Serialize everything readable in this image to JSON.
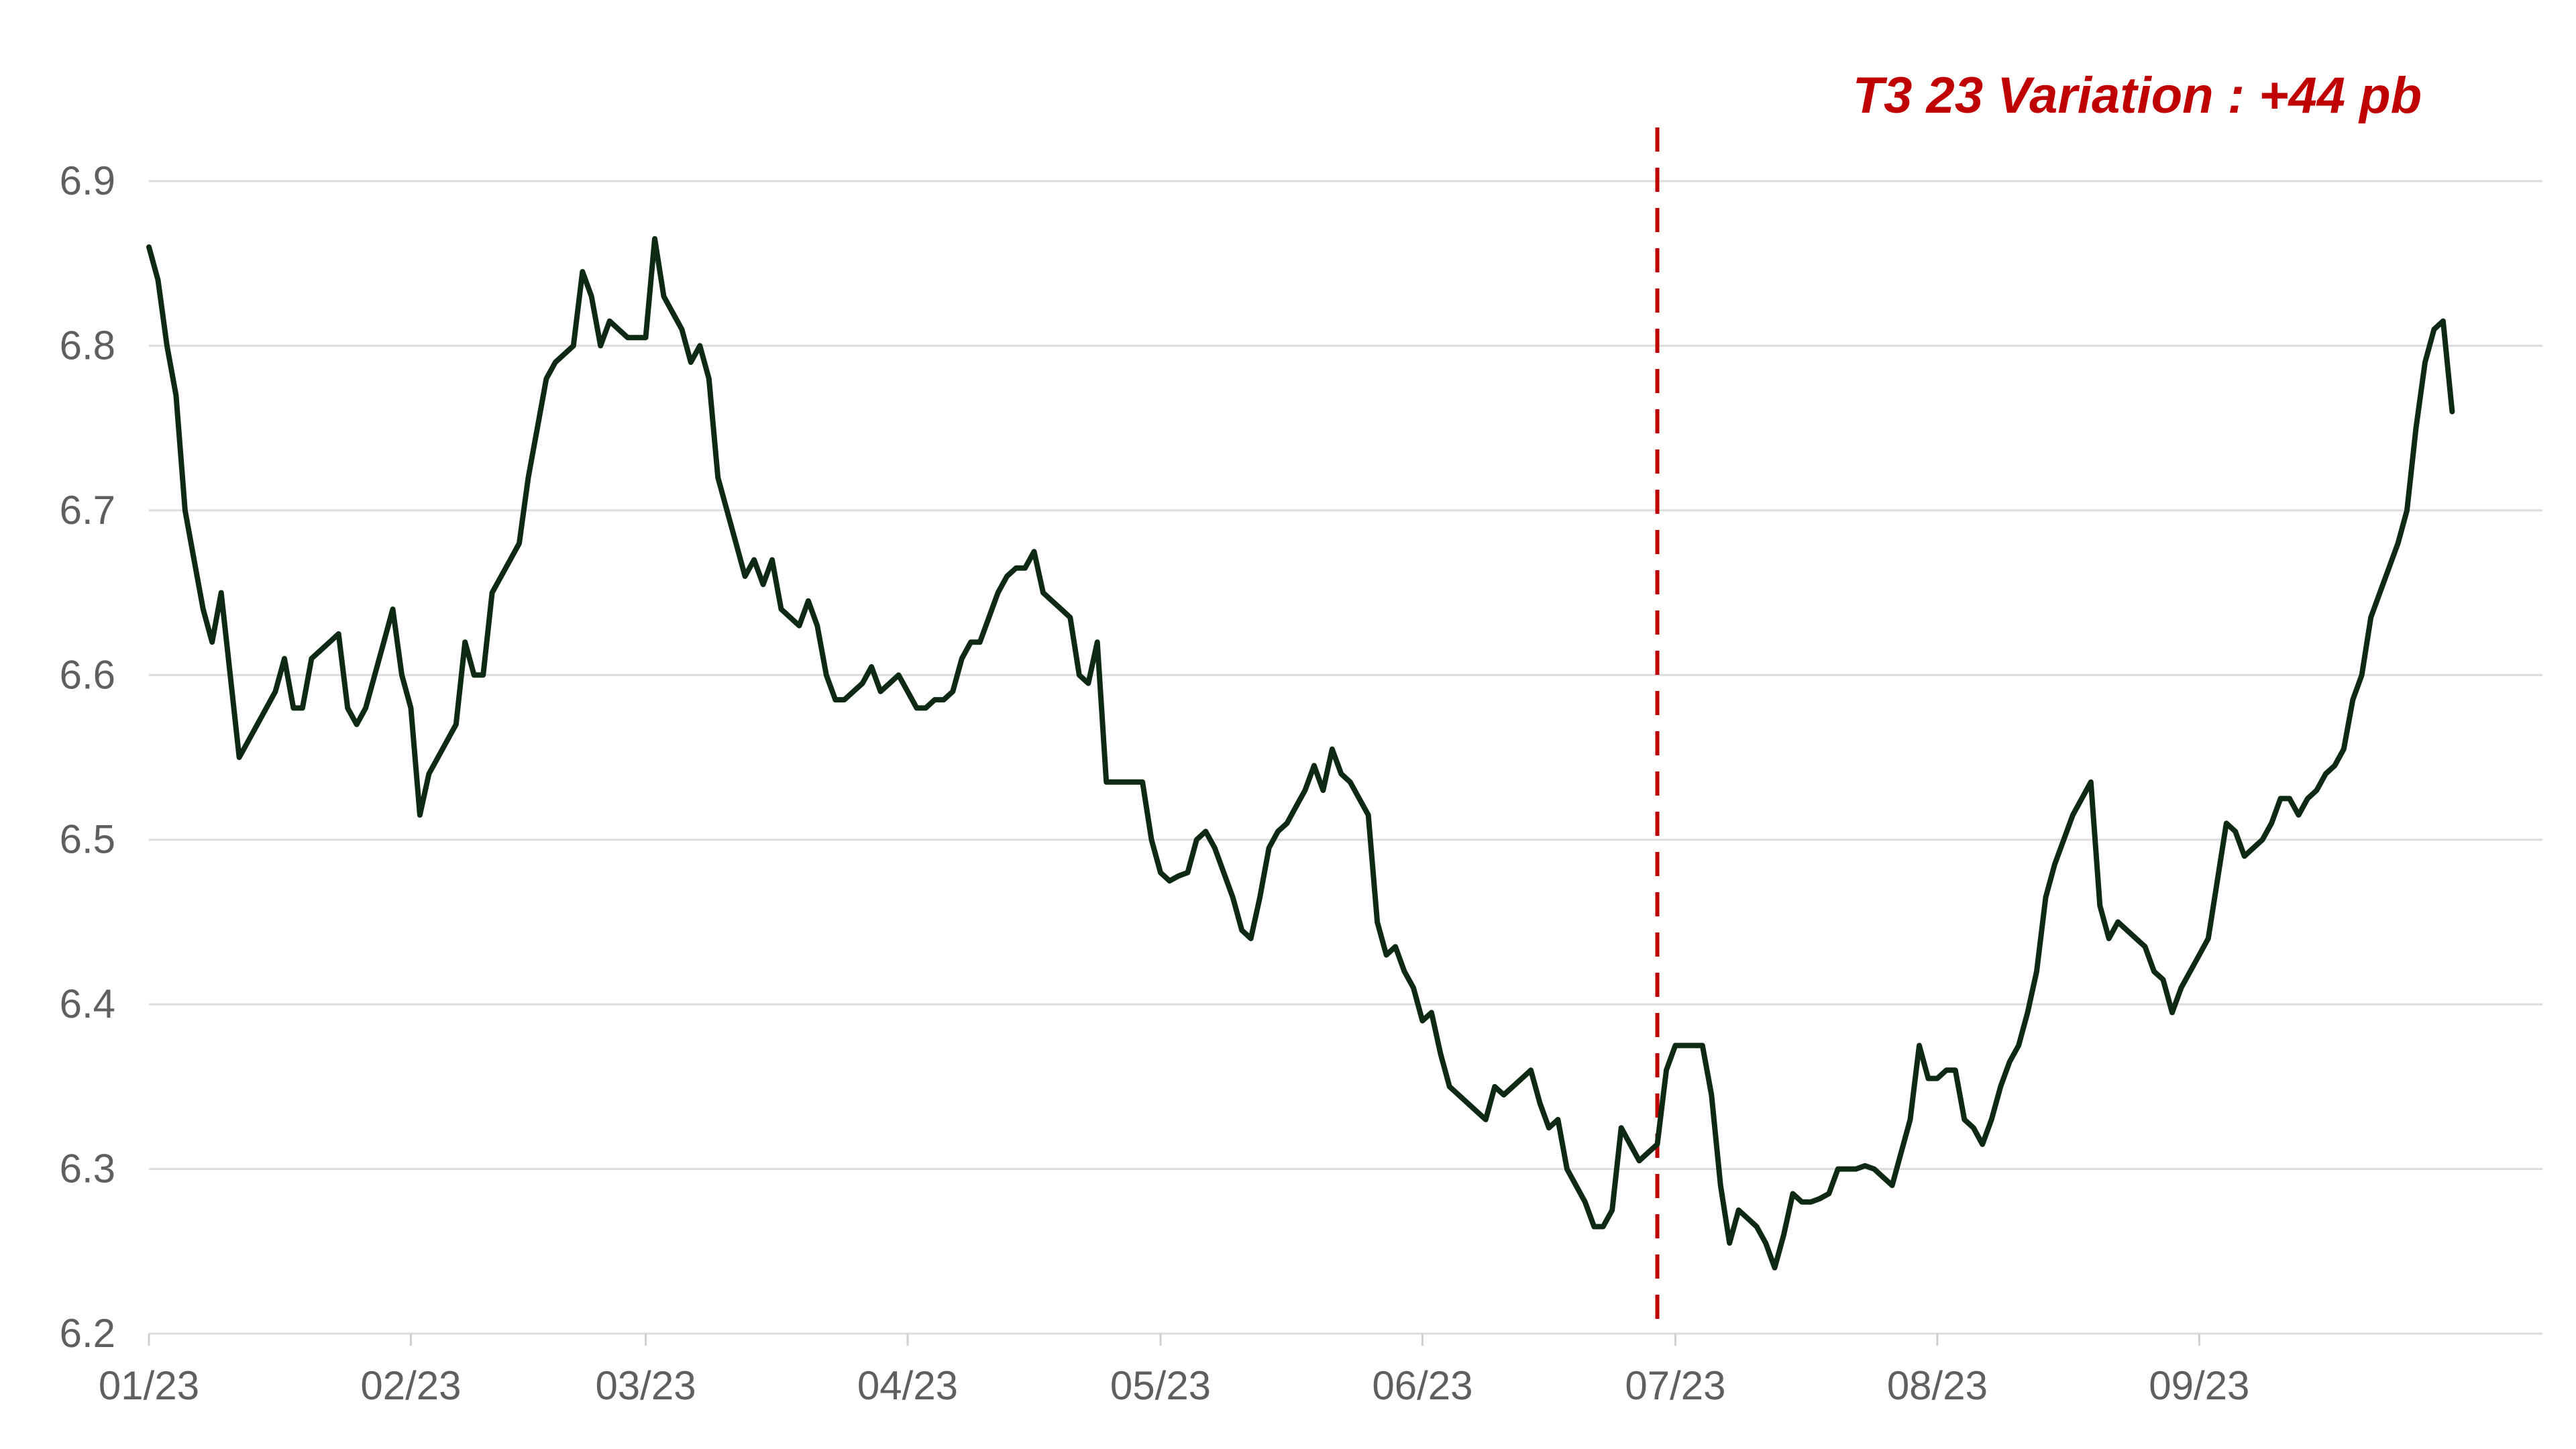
{
  "chart_data": {
    "type": "line",
    "title": "",
    "xlabel": "",
    "ylabel": "",
    "ylim": [
      6.2,
      6.9
    ],
    "yticks": [
      "6.9",
      "6.8",
      "6.7",
      "6.6",
      "6.5",
      "6.4",
      "6.3",
      "6.2"
    ],
    "ytick_values": [
      6.9,
      6.8,
      6.7,
      6.6,
      6.5,
      6.4,
      6.3,
      6.2
    ],
    "xlim": [
      0,
      265
    ],
    "xticks": [
      {
        "label": "01/23",
        "value": 0
      },
      {
        "label": "02/23",
        "value": 29
      },
      {
        "label": "03/23",
        "value": 55
      },
      {
        "label": "04/23",
        "value": 84
      },
      {
        "label": "05/23",
        "value": 112
      },
      {
        "label": "06/23",
        "value": 141
      },
      {
        "label": "07/23",
        "value": 169
      },
      {
        "label": "08/23",
        "value": 198
      },
      {
        "label": "09/23",
        "value": 227
      }
    ],
    "grid": true,
    "marker": {
      "x": 167,
      "style": "dashed",
      "color": "#c00000"
    },
    "annotation": {
      "text": "T3 23 Variation : +44 pb",
      "color": "#c00000"
    },
    "series": [
      {
        "color": "#0f2a14",
        "points": [
          [
            0,
            6.86
          ],
          [
            1,
            6.84
          ],
          [
            2,
            6.8
          ],
          [
            3,
            6.77
          ],
          [
            4,
            6.7
          ],
          [
            5,
            6.67
          ],
          [
            6,
            6.64
          ],
          [
            7,
            6.62
          ],
          [
            8,
            6.65
          ],
          [
            9,
            6.6
          ],
          [
            10,
            6.55
          ],
          [
            11,
            6.56
          ],
          [
            12,
            6.57
          ],
          [
            13,
            6.58
          ],
          [
            14,
            6.59
          ],
          [
            15,
            6.61
          ],
          [
            16,
            6.58
          ],
          [
            17,
            6.58
          ],
          [
            18,
            6.61
          ],
          [
            19,
            6.615
          ],
          [
            20,
            6.62
          ],
          [
            21,
            6.625
          ],
          [
            22,
            6.58
          ],
          [
            23,
            6.57
          ],
          [
            24,
            6.58
          ],
          [
            25,
            6.6
          ],
          [
            26,
            6.62
          ],
          [
            27,
            6.64
          ],
          [
            28,
            6.6
          ],
          [
            29,
            6.58
          ],
          [
            30,
            6.515
          ],
          [
            31,
            6.54
          ],
          [
            32,
            6.55
          ],
          [
            33,
            6.56
          ],
          [
            34,
            6.57
          ],
          [
            35,
            6.62
          ],
          [
            36,
            6.6
          ],
          [
            37,
            6.6
          ],
          [
            38,
            6.65
          ],
          [
            39,
            6.66
          ],
          [
            40,
            6.67
          ],
          [
            41,
            6.68
          ],
          [
            42,
            6.72
          ],
          [
            43,
            6.75
          ],
          [
            44,
            6.78
          ],
          [
            45,
            6.79
          ],
          [
            46,
            6.795
          ],
          [
            47,
            6.8
          ],
          [
            48,
            6.845
          ],
          [
            49,
            6.83
          ],
          [
            50,
            6.8
          ],
          [
            51,
            6.815
          ],
          [
            52,
            6.81
          ],
          [
            53,
            6.805
          ],
          [
            54,
            6.805
          ],
          [
            55,
            6.805
          ],
          [
            56,
            6.865
          ],
          [
            57,
            6.83
          ],
          [
            58,
            6.82
          ],
          [
            59,
            6.81
          ],
          [
            60,
            6.79
          ],
          [
            61,
            6.8
          ],
          [
            62,
            6.78
          ],
          [
            63,
            6.72
          ],
          [
            64,
            6.7
          ],
          [
            65,
            6.68
          ],
          [
            66,
            6.66
          ],
          [
            67,
            6.67
          ],
          [
            68,
            6.655
          ],
          [
            69,
            6.67
          ],
          [
            70,
            6.64
          ],
          [
            71,
            6.635
          ],
          [
            72,
            6.63
          ],
          [
            73,
            6.645
          ],
          [
            74,
            6.63
          ],
          [
            75,
            6.6
          ],
          [
            76,
            6.585
          ],
          [
            77,
            6.585
          ],
          [
            78,
            6.59
          ],
          [
            79,
            6.595
          ],
          [
            80,
            6.605
          ],
          [
            81,
            6.59
          ],
          [
            82,
            6.595
          ],
          [
            83,
            6.6
          ],
          [
            84,
            6.59
          ],
          [
            85,
            6.58
          ],
          [
            86,
            6.58
          ],
          [
            87,
            6.585
          ],
          [
            88,
            6.585
          ],
          [
            89,
            6.59
          ],
          [
            90,
            6.61
          ],
          [
            91,
            6.62
          ],
          [
            92,
            6.62
          ],
          [
            93,
            6.635
          ],
          [
            94,
            6.65
          ],
          [
            95,
            6.66
          ],
          [
            96,
            6.665
          ],
          [
            97,
            6.665
          ],
          [
            98,
            6.675
          ],
          [
            99,
            6.65
          ],
          [
            100,
            6.645
          ],
          [
            101,
            6.64
          ],
          [
            102,
            6.635
          ],
          [
            103,
            6.6
          ],
          [
            104,
            6.595
          ],
          [
            105,
            6.62
          ],
          [
            106,
            6.535
          ],
          [
            107,
            6.535
          ],
          [
            108,
            6.535
          ],
          [
            109,
            6.535
          ],
          [
            110,
            6.535
          ],
          [
            111,
            6.5
          ],
          [
            112,
            6.48
          ],
          [
            113,
            6.475
          ],
          [
            114,
            6.478
          ],
          [
            115,
            6.48
          ],
          [
            116,
            6.5
          ],
          [
            117,
            6.505
          ],
          [
            118,
            6.495
          ],
          [
            119,
            6.48
          ],
          [
            120,
            6.465
          ],
          [
            121,
            6.445
          ],
          [
            122,
            6.44
          ],
          [
            123,
            6.465
          ],
          [
            124,
            6.495
          ],
          [
            125,
            6.505
          ],
          [
            126,
            6.51
          ],
          [
            127,
            6.52
          ],
          [
            128,
            6.53
          ],
          [
            129,
            6.545
          ],
          [
            130,
            6.53
          ],
          [
            131,
            6.555
          ],
          [
            132,
            6.54
          ],
          [
            133,
            6.535
          ],
          [
            134,
            6.525
          ],
          [
            135,
            6.515
          ],
          [
            136,
            6.45
          ],
          [
            137,
            6.43
          ],
          [
            138,
            6.435
          ],
          [
            139,
            6.42
          ],
          [
            140,
            6.41
          ],
          [
            141,
            6.39
          ],
          [
            142,
            6.395
          ],
          [
            143,
            6.37
          ],
          [
            144,
            6.35
          ],
          [
            145,
            6.345
          ],
          [
            146,
            6.34
          ],
          [
            147,
            6.335
          ],
          [
            148,
            6.33
          ],
          [
            149,
            6.35
          ],
          [
            150,
            6.345
          ],
          [
            151,
            6.35
          ],
          [
            152,
            6.355
          ],
          [
            153,
            6.36
          ],
          [
            154,
            6.34
          ],
          [
            155,
            6.325
          ],
          [
            156,
            6.33
          ],
          [
            157,
            6.3
          ],
          [
            158,
            6.29
          ],
          [
            159,
            6.28
          ],
          [
            160,
            6.265
          ],
          [
            161,
            6.265
          ],
          [
            162,
            6.275
          ],
          [
            163,
            6.325
          ],
          [
            164,
            6.315
          ],
          [
            165,
            6.305
          ],
          [
            166,
            6.31
          ],
          [
            167,
            6.315
          ],
          [
            168,
            6.36
          ],
          [
            169,
            6.375
          ],
          [
            170,
            6.375
          ],
          [
            171,
            6.375
          ],
          [
            172,
            6.375
          ],
          [
            173,
            6.345
          ],
          [
            174,
            6.29
          ],
          [
            175,
            6.255
          ],
          [
            176,
            6.275
          ],
          [
            177,
            6.27
          ],
          [
            178,
            6.265
          ],
          [
            179,
            6.255
          ],
          [
            180,
            6.24
          ],
          [
            181,
            6.26
          ],
          [
            182,
            6.285
          ],
          [
            183,
            6.28
          ],
          [
            184,
            6.28
          ],
          [
            185,
            6.282
          ],
          [
            186,
            6.285
          ],
          [
            187,
            6.3
          ],
          [
            188,
            6.3
          ],
          [
            189,
            6.3
          ],
          [
            190,
            6.302
          ],
          [
            191,
            6.3
          ],
          [
            192,
            6.295
          ],
          [
            193,
            6.29
          ],
          [
            194,
            6.31
          ],
          [
            195,
            6.33
          ],
          [
            196,
            6.375
          ],
          [
            197,
            6.355
          ],
          [
            198,
            6.355
          ],
          [
            199,
            6.36
          ],
          [
            200,
            6.36
          ],
          [
            201,
            6.33
          ],
          [
            202,
            6.325
          ],
          [
            203,
            6.315
          ],
          [
            204,
            6.33
          ],
          [
            205,
            6.35
          ],
          [
            206,
            6.365
          ],
          [
            207,
            6.375
          ],
          [
            208,
            6.395
          ],
          [
            209,
            6.42
          ],
          [
            210,
            6.465
          ],
          [
            211,
            6.485
          ],
          [
            212,
            6.5
          ],
          [
            213,
            6.515
          ],
          [
            214,
            6.525
          ],
          [
            215,
            6.535
          ],
          [
            216,
            6.46
          ],
          [
            217,
            6.44
          ],
          [
            218,
            6.45
          ],
          [
            219,
            6.445
          ],
          [
            220,
            6.44
          ],
          [
            221,
            6.435
          ],
          [
            222,
            6.42
          ],
          [
            223,
            6.415
          ],
          [
            224,
            6.395
          ],
          [
            225,
            6.41
          ],
          [
            226,
            6.42
          ],
          [
            227,
            6.43
          ],
          [
            228,
            6.44
          ],
          [
            229,
            6.475
          ],
          [
            230,
            6.51
          ],
          [
            231,
            6.505
          ],
          [
            232,
            6.49
          ],
          [
            233,
            6.495
          ],
          [
            234,
            6.5
          ],
          [
            235,
            6.51
          ],
          [
            236,
            6.525
          ],
          [
            237,
            6.525
          ],
          [
            238,
            6.515
          ],
          [
            239,
            6.525
          ],
          [
            240,
            6.53
          ],
          [
            241,
            6.54
          ],
          [
            242,
            6.545
          ],
          [
            243,
            6.555
          ],
          [
            244,
            6.585
          ],
          [
            245,
            6.6
          ],
          [
            246,
            6.635
          ],
          [
            247,
            6.65
          ],
          [
            248,
            6.665
          ],
          [
            249,
            6.68
          ],
          [
            250,
            6.7
          ],
          [
            251,
            6.75
          ],
          [
            252,
            6.79
          ],
          [
            253,
            6.81
          ],
          [
            254,
            6.815
          ],
          [
            255,
            6.76
          ]
        ]
      }
    ]
  }
}
